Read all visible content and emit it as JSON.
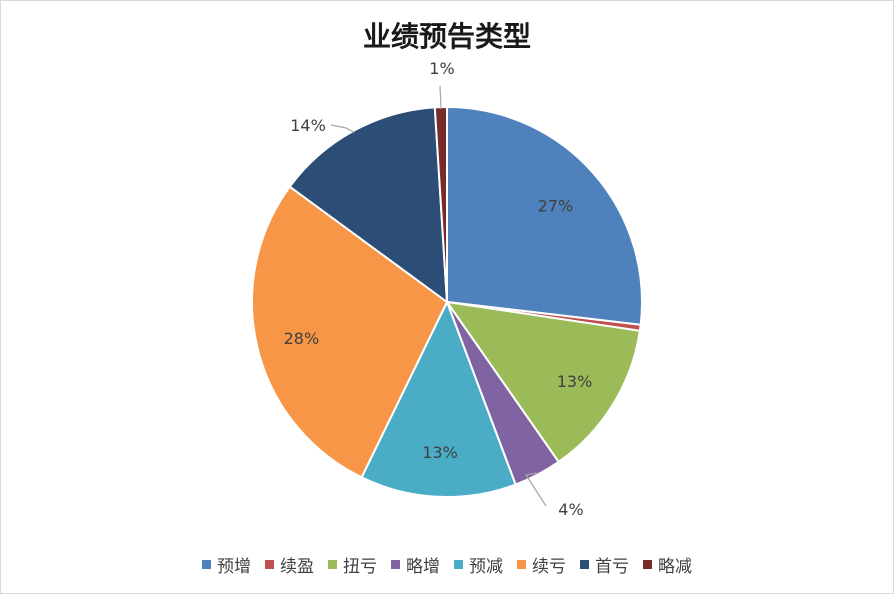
{
  "chart_data": {
    "type": "pie",
    "title": "业绩预告类型",
    "categories": [
      "预增",
      "续盈",
      "扭亏",
      "略增",
      "预减",
      "续亏",
      "首亏",
      "略减"
    ],
    "values": [
      27,
      0.5,
      13,
      4,
      13,
      28,
      14,
      1
    ],
    "data_labels": [
      "27%",
      "",
      "13%",
      "4%",
      "13%",
      "28%",
      "14%",
      "1%"
    ],
    "colors": [
      "#4f81bd",
      "#c0504d",
      "#9bbb59",
      "#8064a2",
      "#4bacc6",
      "#f79646",
      "#2c4d75",
      "#772c2a"
    ],
    "start_angle_deg": 0,
    "direction": "clockwise",
    "legend_position": "bottom"
  }
}
